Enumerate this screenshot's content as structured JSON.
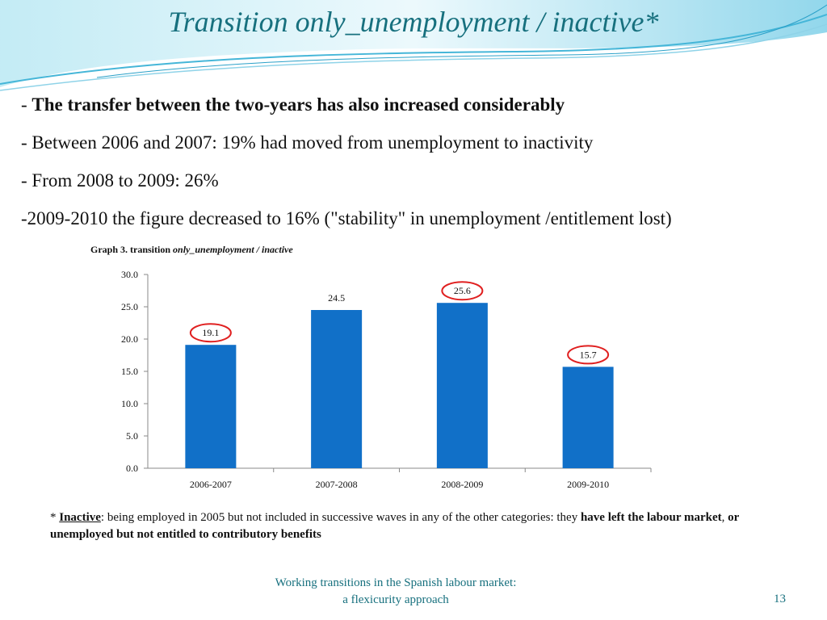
{
  "slide": {
    "title": "Transition only_unemployment / inactive*",
    "bullets": [
      {
        "prefix": "- ",
        "text": "The transfer between the two-years has also increased considerably",
        "bold": true
      },
      {
        "prefix": "- ",
        "text": "Between 2006 and 2007: 19% had moved from unemployment to inactivity",
        "bold": false
      },
      {
        "prefix": "- ",
        "text": "From 2008 to 2009: 26%",
        "bold": false
      },
      {
        "prefix": "-",
        "text": "2009-2010 the figure decreased to 16% (\"stability\" in unemployment /entitlement lost)",
        "bold": false
      }
    ],
    "graph_caption_prefix": "Graph 3. transition ",
    "graph_caption_italic": "only_unemployment /  inactive",
    "footnote": {
      "star": "* ",
      "term": "Inactive",
      "text": ": being employed in 2005 but not included in successive waves in any of the other categories: they ",
      "bold1": "have left the labour market",
      "sep": ", ",
      "bold2": "or unemployed but not entitled to contributory benefits"
    },
    "footer_line1": "Working transitions in the Spanish labour market:",
    "footer_line2": "a flexicurity approach",
    "page_number": "13"
  },
  "colors": {
    "title": "#17707e",
    "bar": "#1170c8",
    "highlight_circle": "#e02020",
    "header_wave": "#7fd0e8"
  },
  "chart_data": {
    "type": "bar",
    "categories": [
      "2006-2007",
      "2007-2008",
      "2008-2009",
      "2009-2010"
    ],
    "values": [
      19.1,
      24.5,
      25.6,
      15.7
    ],
    "value_labels": [
      "19.1",
      "24.5",
      "25.6",
      "15.7"
    ],
    "highlighted": [
      true,
      false,
      true,
      true
    ],
    "ylim": [
      0,
      30
    ],
    "yticks": [
      "0.0",
      "5.0",
      "10.0",
      "15.0",
      "20.0",
      "25.0",
      "30.0"
    ],
    "grid": false
  }
}
